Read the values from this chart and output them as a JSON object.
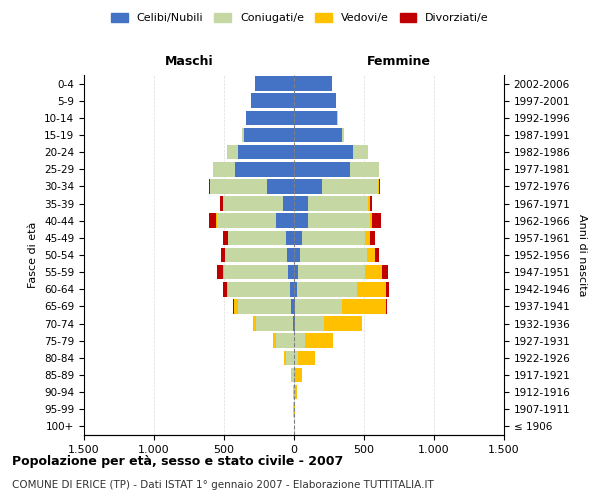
{
  "age_groups": [
    "100+",
    "95-99",
    "90-94",
    "85-89",
    "80-84",
    "75-79",
    "70-74",
    "65-69",
    "60-64",
    "55-59",
    "50-54",
    "45-49",
    "40-44",
    "35-39",
    "30-34",
    "25-29",
    "20-24",
    "15-19",
    "10-14",
    "5-9",
    "0-4"
  ],
  "birth_years": [
    "≤ 1906",
    "1907-1911",
    "1912-1916",
    "1917-1921",
    "1922-1926",
    "1927-1931",
    "1932-1936",
    "1937-1941",
    "1942-1946",
    "1947-1951",
    "1952-1956",
    "1957-1961",
    "1962-1966",
    "1967-1971",
    "1972-1976",
    "1977-1981",
    "1982-1986",
    "1987-1991",
    "1992-1996",
    "1997-2001",
    "2002-2006"
  ],
  "males": {
    "celibi": [
      0,
      0,
      0,
      0,
      0,
      0,
      10,
      20,
      30,
      40,
      50,
      60,
      130,
      80,
      190,
      420,
      400,
      360,
      340,
      310,
      280
    ],
    "coniugati": [
      0,
      5,
      10,
      20,
      60,
      130,
      260,
      380,
      440,
      460,
      440,
      410,
      420,
      430,
      410,
      160,
      80,
      10,
      5,
      0,
      0
    ],
    "vedovi": [
      0,
      0,
      0,
      5,
      10,
      20,
      20,
      30,
      10,
      10,
      5,
      5,
      5,
      0,
      0,
      0,
      0,
      0,
      0,
      0,
      0
    ],
    "divorziati": [
      0,
      0,
      0,
      0,
      0,
      0,
      0,
      5,
      30,
      40,
      30,
      30,
      50,
      20,
      10,
      0,
      0,
      0,
      0,
      0,
      0
    ]
  },
  "females": {
    "nubili": [
      0,
      0,
      0,
      0,
      0,
      0,
      5,
      10,
      20,
      30,
      40,
      60,
      100,
      100,
      200,
      400,
      420,
      340,
      310,
      300,
      270
    ],
    "coniugate": [
      0,
      0,
      5,
      10,
      30,
      80,
      210,
      330,
      430,
      480,
      480,
      450,
      440,
      430,
      400,
      210,
      110,
      20,
      5,
      0,
      0
    ],
    "vedove": [
      0,
      5,
      15,
      50,
      120,
      200,
      270,
      320,
      210,
      120,
      60,
      30,
      20,
      10,
      5,
      0,
      0,
      0,
      0,
      0,
      0
    ],
    "divorziate": [
      0,
      0,
      0,
      0,
      0,
      0,
      0,
      5,
      20,
      40,
      30,
      40,
      60,
      20,
      10,
      0,
      0,
      0,
      0,
      0,
      0
    ]
  },
  "colors": {
    "celibi": "#4472c4",
    "coniugati": "#c5d8a4",
    "vedovi": "#ffc000",
    "divorziati": "#c00000"
  },
  "xlim": 1500,
  "title": "Popolazione per età, sesso e stato civile - 2007",
  "subtitle": "COMUNE DI ERICE (TP) - Dati ISTAT 1° gennaio 2007 - Elaborazione TUTTITALIA.IT",
  "xlabel_left": "Maschi",
  "xlabel_right": "Femmine",
  "ylabel": "Fasce di età",
  "ylabel_right": "Anni di nascita",
  "legend_labels": [
    "Celibi/Nubili",
    "Coniugati/e",
    "Vedovi/e",
    "Divorziati/e"
  ]
}
